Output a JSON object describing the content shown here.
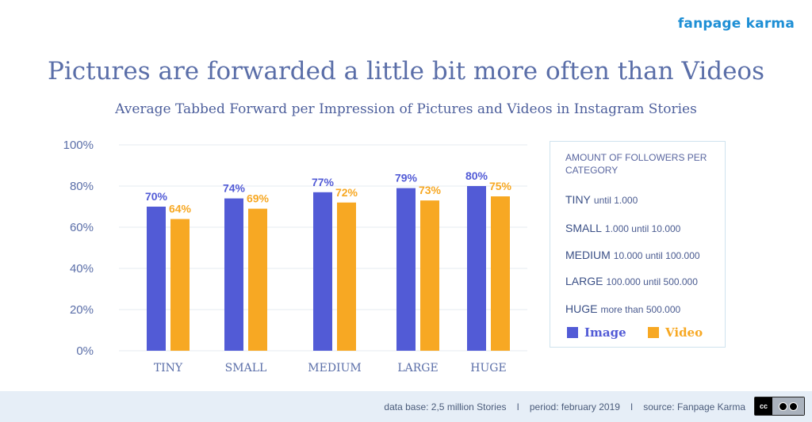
{
  "brand": "fanpage karma",
  "title": "Pictures are forwarded a little bit more often than Videos",
  "subtitle": "Average Tabbed Forward per Impression of Pictures and Videos in Instagram Stories",
  "colors": {
    "image": "#525bd6",
    "video": "#f7a823",
    "axis": "#5a6ea8",
    "grid": "#e6ebf1"
  },
  "chart_data": {
    "type": "bar",
    "categories": [
      "TINY",
      "SMALL",
      "MEDIUM",
      "LARGE",
      "HUGE"
    ],
    "series": [
      {
        "name": "Image",
        "values": [
          70,
          74,
          77,
          79,
          80
        ],
        "labels": [
          "70%",
          "74%",
          "77%",
          "79%",
          "80%"
        ]
      },
      {
        "name": "Video",
        "values": [
          64,
          69,
          72,
          73,
          75
        ],
        "labels": [
          "64%",
          "69%",
          "72%",
          "73%",
          "75%"
        ]
      }
    ],
    "yticks": [
      "0%",
      "20%",
      "40%",
      "60%",
      "80%",
      "100%"
    ],
    "ylim": [
      0,
      100
    ],
    "grid": true,
    "legend": "right"
  },
  "legend_panel": {
    "heading": "AMOUNT OF FOLLOWERS PER CATEGORY",
    "sizes": [
      {
        "name": "TINY",
        "range": "until 1.000"
      },
      {
        "name": "SMALL",
        "range": "1.000 until 10.000"
      },
      {
        "name": "MEDIUM",
        "range": "10.000 until 100.000"
      },
      {
        "name": "LARGE",
        "range": "100.000 until 500.000"
      },
      {
        "name": "HUGE",
        "range": "more than 500.000"
      }
    ],
    "keys": {
      "image": "Image",
      "video": "Video"
    }
  },
  "footer": {
    "text": "data base: 2,5 million Stories    l    period: february 2019    l    source: Fanpage Karma"
  },
  "license": {
    "cc": "cc",
    "by": "BY",
    "nd": "ND"
  }
}
